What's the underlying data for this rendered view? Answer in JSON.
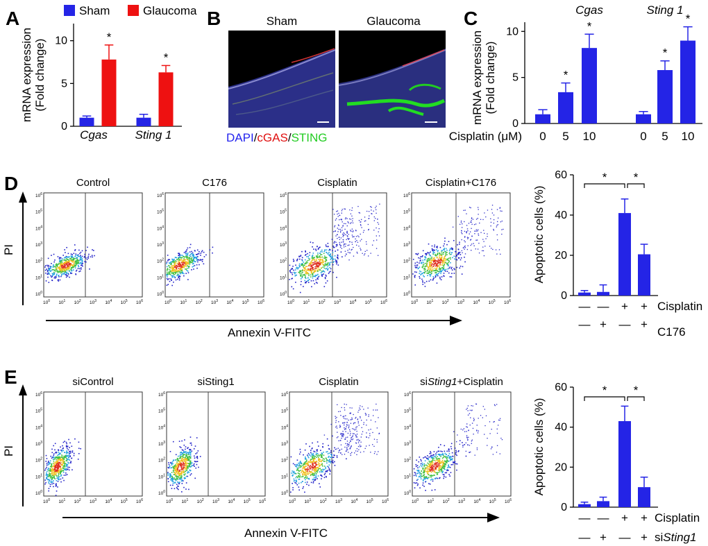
{
  "panels": {
    "A": "A",
    "B": "B",
    "C": "C",
    "D": "D",
    "E": "E"
  },
  "colors": {
    "blue": "#2424e6",
    "red": "#ee1111",
    "black": "#000000",
    "gate": "#555555"
  },
  "chart_data": [
    {
      "panel": "A",
      "type": "bar",
      "ylabel": "mRNA expression",
      "ylabel2": "(Fold change)",
      "ylim": [
        0,
        12
      ],
      "yticks": [
        "0",
        "5",
        "10"
      ],
      "categories": [
        "Cgas",
        "Sting 1"
      ],
      "series": [
        {
          "name": "Sham",
          "color": "#2424e6",
          "values": [
            1.0,
            1.0
          ],
          "errors": [
            0.2,
            0.4
          ]
        },
        {
          "name": "Glaucoma",
          "color": "#ee1111",
          "values": [
            7.8,
            6.3
          ],
          "errors": [
            1.7,
            0.8
          ]
        }
      ],
      "significance": [
        "*",
        "*"
      ]
    },
    {
      "panel": "C",
      "type": "bar",
      "ylabel": "mRNA expression",
      "ylabel2": "(Fold change)",
      "ylim": [
        0,
        11
      ],
      "yticks": [
        "0",
        "5",
        "10"
      ],
      "groups": [
        "Cgas",
        "Sting 1"
      ],
      "cisplatin_label": "Cisplatin (μM)",
      "doses": [
        "0",
        "5",
        "10"
      ],
      "values": [
        [
          1.0,
          3.4,
          8.2
        ],
        [
          1.0,
          5.8,
          9.0
        ]
      ],
      "errors": [
        [
          0.5,
          1.0,
          1.5
        ],
        [
          0.3,
          1.0,
          1.5
        ]
      ],
      "significance": [
        [
          "",
          "*",
          "*"
        ],
        [
          "",
          "*",
          "*"
        ]
      ]
    },
    {
      "panel": "D",
      "type": "bar",
      "ylabel": "Apoptotic cells (%)",
      "ylim": [
        0,
        60
      ],
      "yticks": [
        "0",
        "20",
        "40",
        "60"
      ],
      "values": [
        1.5,
        1.8,
        41.0,
        20.5
      ],
      "errors": [
        1.0,
        3.5,
        7.0,
        5.0
      ],
      "row1": {
        "label": "Cisplatin",
        "signs": [
          "—",
          "—",
          "+",
          "+"
        ]
      },
      "row2": {
        "label": "C176",
        "signs": [
          "—",
          "+",
          "—",
          "+"
        ]
      },
      "significance": [
        "*",
        "*"
      ]
    },
    {
      "panel": "E",
      "type": "bar",
      "ylabel": "Apoptotic cells (%)",
      "ylim": [
        0,
        60
      ],
      "yticks": [
        "0",
        "20",
        "40",
        "60"
      ],
      "values": [
        1.5,
        3.0,
        43.0,
        10.0
      ],
      "errors": [
        1.0,
        2.0,
        7.5,
        5.0
      ],
      "row1": {
        "label": "Cisplatin",
        "signs": [
          "—",
          "—",
          "+",
          "+"
        ]
      },
      "row2": {
        "prefix": "si",
        "italic": "Sting1",
        "signs": [
          "—",
          "+",
          "—",
          "+"
        ]
      },
      "significance": [
        "*",
        "*"
      ]
    },
    {
      "panel": "D-flow",
      "type": "scatter",
      "titles": [
        "Control",
        "C176",
        "Cisplatin",
        "Cisplatin+C176"
      ],
      "xlabel": "Annexin V-FITC",
      "ylabel": "PI",
      "exponents": [
        "0",
        "1",
        "2",
        "3",
        "4",
        "5",
        "6"
      ]
    },
    {
      "panel": "E-flow",
      "type": "scatter",
      "titles": [
        "siControl",
        "siSting1",
        "Cisplatin",
        "siSting1+Cisplatin"
      ],
      "title4_prefix": "si",
      "title4_italic": "Sting1",
      "title4_suffix": "+Cisplatin",
      "xlabel": "Annexin V-FITC",
      "ylabel": "PI",
      "exponents": [
        "0",
        "1",
        "2",
        "3",
        "4",
        "5",
        "6"
      ]
    }
  ],
  "panelB": {
    "titles": [
      "Sham",
      "Glaucoma"
    ],
    "stain": {
      "dapi": "DAPI",
      "sep1": "/",
      "cgas": "cGAS",
      "sep2": "/",
      "sting": "STING"
    },
    "stain_colors": {
      "dapi": "#2323ee",
      "cgas": "#e01010",
      "sting": "#22cc22"
    }
  }
}
